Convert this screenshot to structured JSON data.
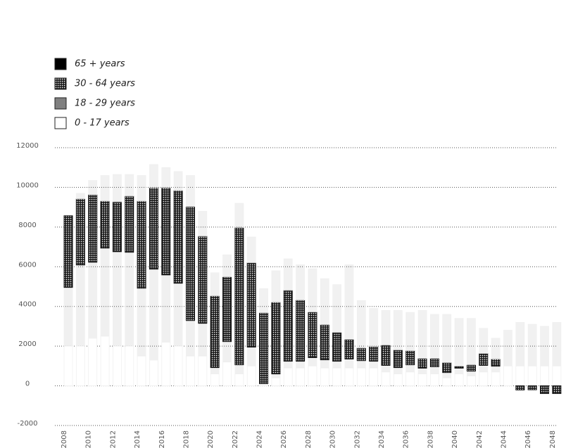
{
  "chart_data": {
    "type": "stacked_bar",
    "categories": [
      "2008",
      null,
      "2010",
      null,
      "2012",
      null,
      "2014",
      null,
      "2016",
      null,
      "2018",
      null,
      "2020",
      null,
      "2022",
      null,
      "2024",
      null,
      "2026",
      null,
      "2028",
      null,
      "2030",
      null,
      "2032",
      null,
      "2034",
      null,
      "2036",
      null,
      "2038",
      null,
      "2040",
      null,
      "2042",
      null,
      "2044",
      null,
      "2046",
      null,
      "2048"
    ],
    "series": [
      {
        "name": "65 + years",
        "color": "#000000",
        "values": [
          0,
          280,
          720,
          1290,
          1380,
          1090,
          1290,
          1170,
          1020,
          960,
          1570,
          1260,
          1170,
          1110,
          1230,
          1300,
          1220,
          1590,
          1590,
          1780,
          2180,
          2320,
          2410,
          3760,
          2390,
          1920,
          1750,
          1990,
          1930,
          2420,
          2220,
          2430,
          2410,
          2340,
          1270,
          1050,
          1000,
          1400,
          1300,
          1200,
          1400
        ]
      },
      {
        "name": "30 - 64 years",
        "color": "#111111",
        "values": [
          3610,
          3330,
          3400,
          2370,
          2510,
          2830,
          4390,
          4100,
          4390,
          4670,
          5740,
          4390,
          3610,
          3260,
          6910,
          4250,
          3570,
          3610,
          3570,
          3080,
          2300,
          1770,
          1450,
          990,
          640,
          740,
          1020,
          890,
          710,
          490,
          420,
          500,
          100,
          320,
          600,
          360,
          0,
          -210,
          -200,
          -390,
          -390
        ]
      },
      {
        "name": "18 - 29 years",
        "color": "#808080",
        "values": [
          2960,
          4090,
          3830,
          4440,
          4760,
          4730,
          3420,
          4580,
          3390,
          3170,
          1790,
          1650,
          320,
          1030,
          460,
          950,
          50,
          200,
          340,
          340,
          420,
          410,
          340,
          450,
          370,
          340,
          330,
          320,
          360,
          290,
          360,
          270,
          290,
          240,
          330,
          290,
          800,
          800,
          800,
          800,
          800
        ]
      },
      {
        "name": "0 - 17 years",
        "color": "#ffffff",
        "values": [
          2000,
          2000,
          2400,
          2500,
          2000,
          2000,
          1500,
          1300,
          2200,
          2000,
          1500,
          1500,
          600,
          1200,
          600,
          1000,
          60,
          400,
          900,
          900,
          1000,
          900,
          900,
          900,
          900,
          900,
          700,
          600,
          700,
          600,
          600,
          400,
          600,
          500,
          700,
          700,
          1000,
          1000,
          1000,
          1000,
          1000
        ]
      }
    ],
    "highlight_series": 1,
    "ylim": [
      -2000,
      12000
    ],
    "yticks": [
      -2000,
      0,
      2000,
      4000,
      6000,
      8000,
      10000,
      12000
    ],
    "grid": true
  }
}
